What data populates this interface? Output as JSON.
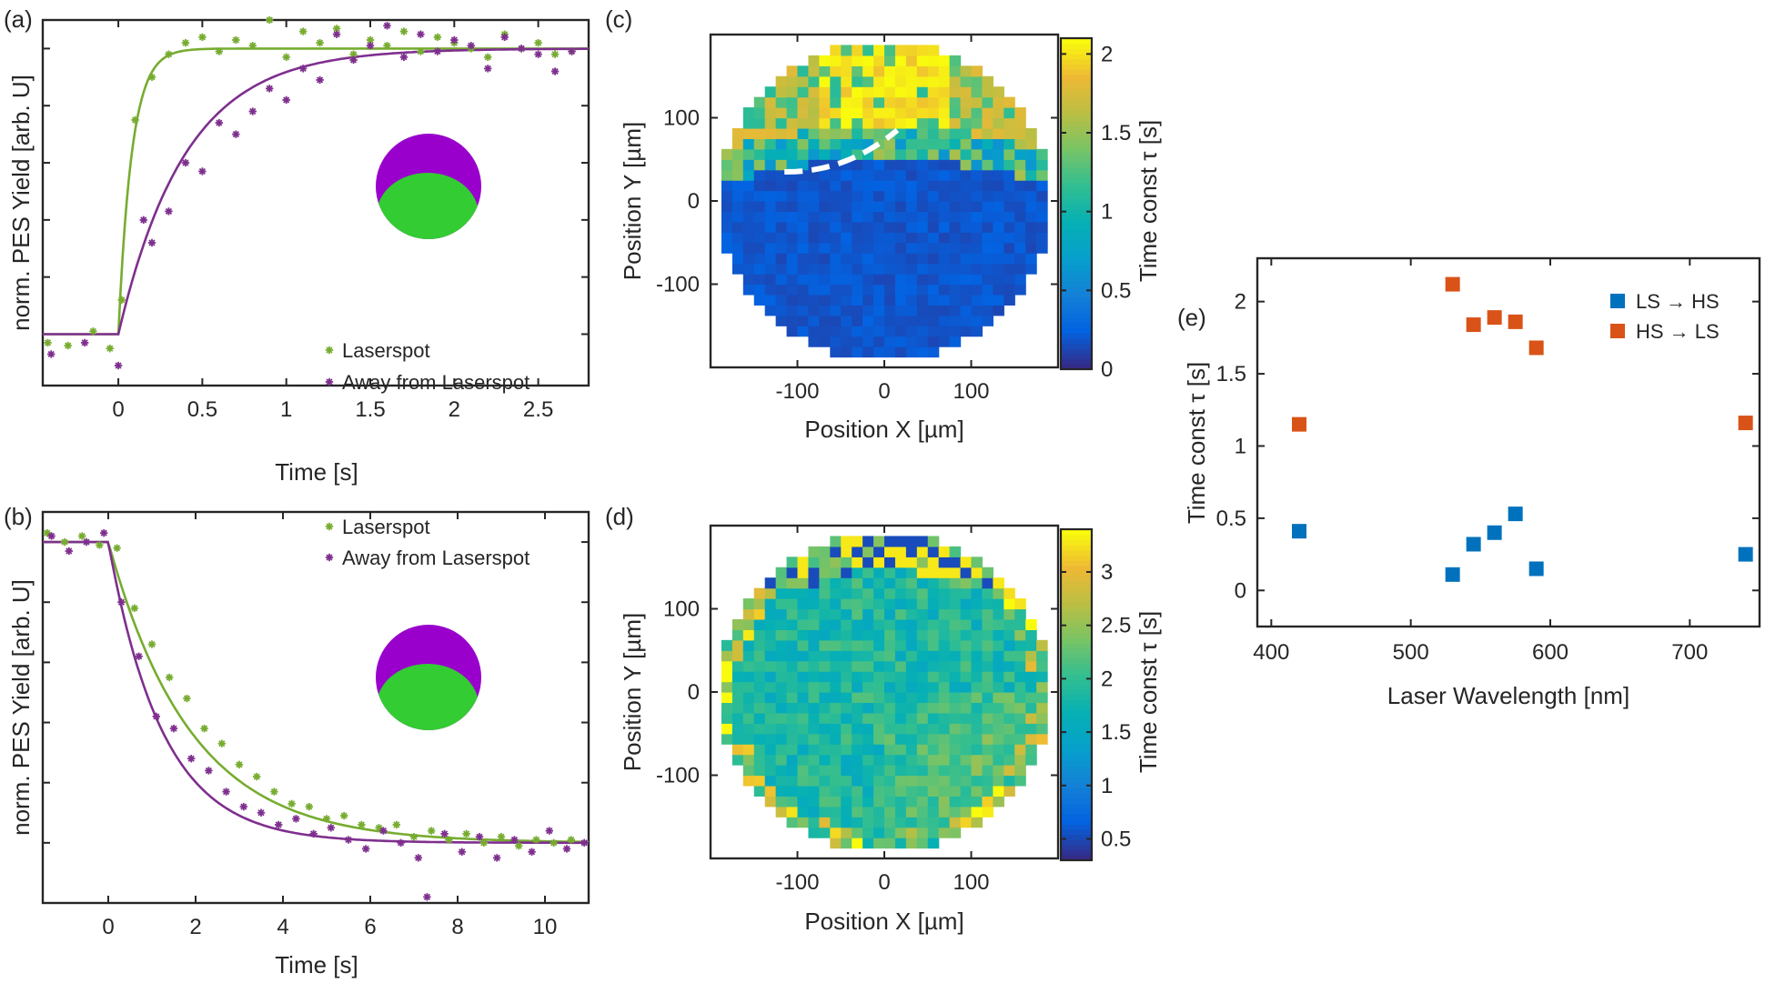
{
  "chart_data": [
    {
      "id": "a",
      "type": "scatter",
      "panel_label": "(a)",
      "xlabel": "Time [s]",
      "ylabel": "norm. PES Yield [arb. U]",
      "xlim": [
        -0.45,
        2.8
      ],
      "ylim": [
        -0.18,
        1.1
      ],
      "xticks": [
        0,
        0.5,
        1,
        1.5,
        2,
        2.5
      ],
      "xtick_labels": [
        "0",
        "0.5",
        "1",
        "1.5",
        "2",
        "2.5"
      ],
      "yticks": [
        0,
        0.2,
        0.4,
        0.6,
        0.8,
        1.0
      ],
      "y_tick_labels_shown": false,
      "legend_position": "bottom-right",
      "series": [
        {
          "name": "Laserspot",
          "color": "#77ac30",
          "marker": "asterisk",
          "fit": {
            "model": "exp_rise",
            "t0": 0,
            "tau": 0.08,
            "low": 0,
            "high": 1
          },
          "x": [
            -0.42,
            -0.3,
            -0.15,
            -0.05,
            0.02,
            0.1,
            0.2,
            0.3,
            0.4,
            0.5,
            0.6,
            0.7,
            0.8,
            0.9,
            1.0,
            1.1,
            1.2,
            1.3,
            1.4,
            1.5,
            1.6,
            1.7,
            1.8,
            1.9,
            2.0,
            2.1,
            2.2,
            2.3,
            2.4,
            2.5,
            2.6,
            2.7
          ],
          "y": [
            -0.03,
            -0.04,
            0.01,
            -0.05,
            0.12,
            0.75,
            0.9,
            0.98,
            1.02,
            1.04,
            0.99,
            1.03,
            1.01,
            1.1,
            0.97,
            1.06,
            1.02,
            1.07,
            0.98,
            1.03,
            1.01,
            1.06,
            0.99,
            1.04,
            1.02,
            1.0,
            0.97,
            1.05,
            1.0,
            1.02,
            0.98,
            0.99
          ]
        },
        {
          "name": "Away from Laserspot",
          "color": "#7e2f8e",
          "marker": "asterisk",
          "fit": {
            "model": "exp_rise",
            "t0": 0,
            "tau": 0.4,
            "low": 0,
            "high": 1
          },
          "x": [
            -0.4,
            -0.2,
            0.0,
            0.15,
            0.2,
            0.3,
            0.4,
            0.5,
            0.6,
            0.7,
            0.8,
            0.9,
            1.0,
            1.1,
            1.2,
            1.3,
            1.4,
            1.5,
            1.6,
            1.7,
            1.8,
            1.9,
            2.0,
            2.1,
            2.2,
            2.3,
            2.4,
            2.5,
            2.6,
            2.7
          ],
          "y": [
            -0.07,
            -0.03,
            -0.11,
            0.4,
            0.32,
            0.43,
            0.6,
            0.57,
            0.74,
            0.7,
            0.78,
            0.86,
            0.82,
            0.93,
            0.89,
            1.05,
            0.96,
            1.01,
            1.08,
            0.97,
            1.05,
            0.99,
            1.03,
            1.01,
            0.93,
            1.04,
            1.0,
            0.98,
            0.92,
            0.99
          ]
        }
      ],
      "legend": [
        "Laserspot",
        "Away from Laserspot"
      ]
    },
    {
      "id": "b",
      "type": "scatter",
      "panel_label": "(b)",
      "xlabel": "Time [s]",
      "ylabel": "norm. PES Yield [arb. U]",
      "xlim": [
        -1.5,
        11
      ],
      "ylim": [
        -0.2,
        1.1
      ],
      "xticks": [
        0,
        2,
        4,
        6,
        8,
        10
      ],
      "xtick_labels": [
        "0",
        "2",
        "4",
        "6",
        "8",
        "10"
      ],
      "yticks": [
        0,
        0.2,
        0.4,
        0.6,
        0.8,
        1.0
      ],
      "y_tick_labels_shown": false,
      "legend_position": "top-right",
      "series": [
        {
          "name": "Laserspot",
          "color": "#77ac30",
          "marker": "asterisk",
          "fit": {
            "model": "exp_decay",
            "t0": 0,
            "tau": 1.9,
            "low": 0,
            "high": 1
          },
          "x": [
            -1.4,
            -1.0,
            -0.6,
            -0.2,
            0.2,
            0.6,
            1.0,
            1.4,
            1.8,
            2.2,
            2.6,
            3.0,
            3.4,
            3.8,
            4.2,
            4.6,
            5.0,
            5.4,
            5.8,
            6.2,
            6.6,
            7.0,
            7.4,
            7.8,
            8.2,
            8.6,
            9.0,
            9.4,
            9.8,
            10.2,
            10.6
          ],
          "y": [
            1.03,
            1.0,
            1.02,
            0.99,
            0.98,
            0.78,
            0.66,
            0.55,
            0.48,
            0.38,
            0.33,
            0.26,
            0.22,
            0.17,
            0.13,
            0.12,
            0.08,
            0.09,
            0.06,
            0.05,
            0.06,
            0.02,
            0.04,
            0.01,
            0.03,
            0.0,
            0.02,
            -0.01,
            0.01,
            0.0,
            0.01
          ]
        },
        {
          "name": "Away from Laserspot",
          "color": "#7e2f8e",
          "marker": "asterisk",
          "fit": {
            "model": "exp_decay",
            "t0": 0,
            "tau": 1.25,
            "low": 0,
            "high": 1
          },
          "x": [
            -1.3,
            -0.9,
            -0.5,
            -0.1,
            0.3,
            0.7,
            1.1,
            1.5,
            1.9,
            2.3,
            2.7,
            3.1,
            3.5,
            3.9,
            4.3,
            4.7,
            5.1,
            5.5,
            5.9,
            6.3,
            6.7,
            7.1,
            7.3,
            7.7,
            8.1,
            8.5,
            8.9,
            9.3,
            9.7,
            10.1,
            10.5,
            10.9
          ],
          "y": [
            1.02,
            0.97,
            1.0,
            1.03,
            0.8,
            0.62,
            0.42,
            0.38,
            0.28,
            0.24,
            0.17,
            0.12,
            0.1,
            0.06,
            0.08,
            0.03,
            0.05,
            0.01,
            -0.02,
            0.04,
            0.0,
            -0.05,
            -0.18,
            0.03,
            -0.03,
            0.02,
            -0.05,
            0.01,
            -0.03,
            0.04,
            -0.02,
            0.0
          ]
        }
      ],
      "legend": [
        "Laserspot",
        "Away from Laserspot"
      ]
    },
    {
      "id": "c",
      "type": "heatmap",
      "panel_label": "(c)",
      "xlabel": "Position X [µm]",
      "ylabel": "Position Y [µm]",
      "xlim": [
        -200,
        200
      ],
      "ylim": [
        -200,
        200
      ],
      "xticks": [
        -100,
        0,
        100
      ],
      "xtick_labels": [
        "-100",
        "0",
        "100"
      ],
      "yticks": [
        -100,
        0,
        100
      ],
      "ytick_labels": [
        "-100",
        "0",
        "100"
      ],
      "colorbar_label": "Time const τ [s]",
      "clim": [
        0,
        2.1
      ],
      "colorbar_ticks": [
        0,
        0.5,
        1,
        1.5,
        2
      ],
      "colorbar_tick_labels": [
        "0",
        "0.5",
        "1",
        "1.5",
        "2"
      ],
      "grid_size": 32,
      "disk_radius": 192,
      "boundary_y": 60,
      "high_value": 1.9,
      "low_value": 0.12,
      "annotation": "white dashed arc from (-115, 35) to (15, 85)"
    },
    {
      "id": "d",
      "type": "heatmap",
      "panel_label": "(d)",
      "xlabel": "Position X [µm]",
      "ylabel": "Position Y [µm]",
      "xlim": [
        -200,
        200
      ],
      "ylim": [
        -200,
        200
      ],
      "xticks": [
        -100,
        0,
        100
      ],
      "xtick_labels": [
        "-100",
        "0",
        "100"
      ],
      "yticks": [
        -100,
        0,
        100
      ],
      "ytick_labels": [
        "-100",
        "0",
        "100"
      ],
      "colorbar_label": "Time const τ [s]",
      "clim": [
        0.3,
        3.4
      ],
      "colorbar_ticks": [
        0.5,
        1,
        1.5,
        2,
        2.5,
        3
      ],
      "colorbar_tick_labels": [
        "0.5",
        "1",
        "1.5",
        "2",
        "2.5",
        "3"
      ],
      "grid_size": 32,
      "disk_radius": 192,
      "center_value": 1.85,
      "lower_right_value": 2.3,
      "edge_value": 2.6
    },
    {
      "id": "e",
      "type": "scatter",
      "panel_label": "(e)",
      "xlabel": "Laser Wavelength [nm]",
      "ylabel": "Time const τ [s]",
      "xlim": [
        390,
        750
      ],
      "ylim": [
        -0.25,
        2.3
      ],
      "xticks": [
        400,
        500,
        600,
        700
      ],
      "xtick_labels": [
        "400",
        "500",
        "600",
        "700"
      ],
      "yticks": [
        0,
        0.5,
        1,
        1.5,
        2
      ],
      "ytick_labels": [
        "0",
        "0.5",
        "1",
        "1.5",
        "2"
      ],
      "legend_position": "top-right",
      "series": [
        {
          "name": "LS → HS",
          "color": "#0072bd",
          "marker": "square",
          "x": [
            420,
            530,
            545,
            560,
            575,
            590,
            740
          ],
          "y": [
            0.41,
            0.11,
            0.32,
            0.4,
            0.53,
            0.15,
            0.25
          ]
        },
        {
          "name": "HS → LS",
          "color": "#d95319",
          "marker": "square",
          "x": [
            420,
            530,
            545,
            560,
            575,
            590,
            740
          ],
          "y": [
            1.15,
            2.12,
            1.84,
            1.89,
            1.86,
            1.68,
            1.16
          ]
        }
      ],
      "legend": [
        "LS → HS",
        "HS → LS"
      ]
    }
  ],
  "insets": {
    "outer_color": "#9900cc",
    "inner_color": "#33cc33"
  }
}
